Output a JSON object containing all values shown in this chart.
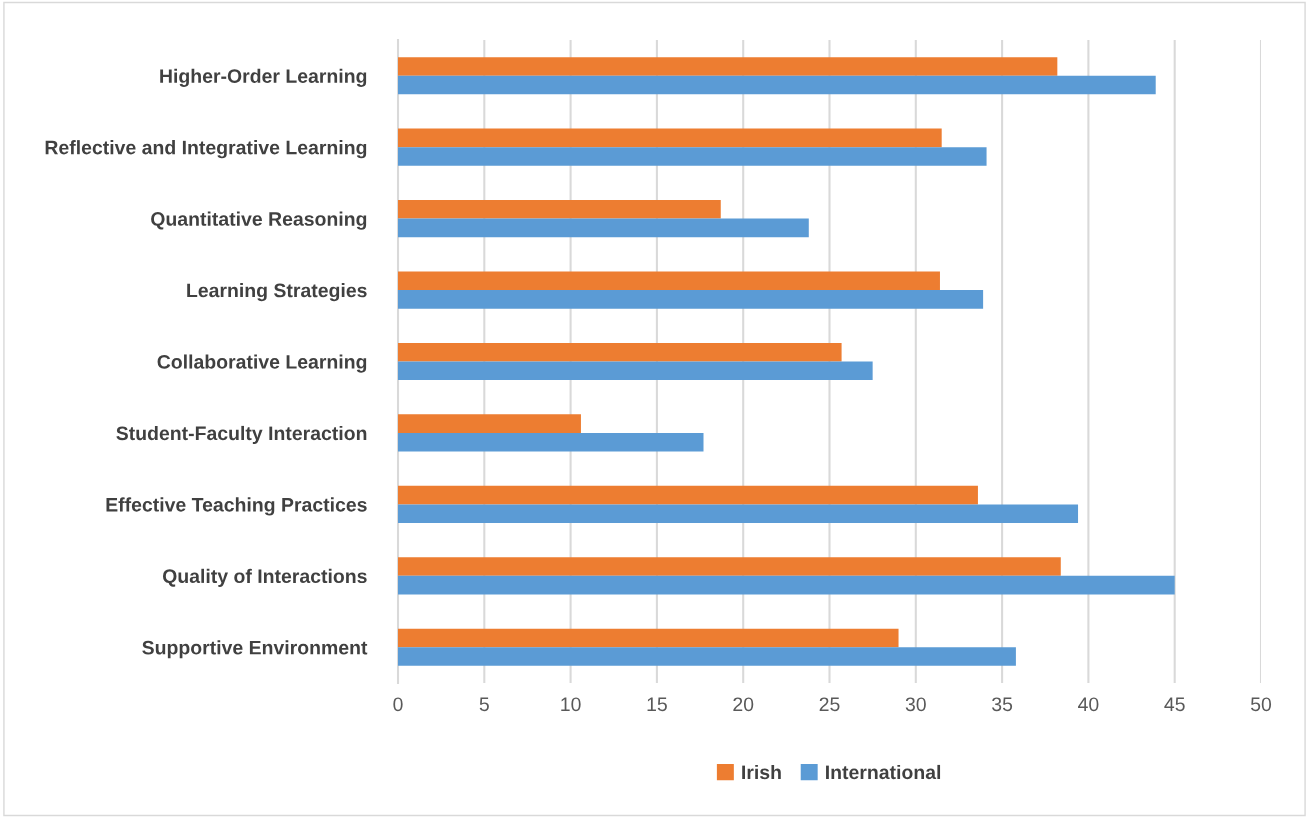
{
  "chart_data": {
    "type": "bar",
    "orientation": "horizontal",
    "categories": [
      "Higher-Order Learning",
      "Reflective and Integrative Learning",
      "Quantitative Reasoning",
      "Learning Strategies",
      "Collaborative Learning",
      "Student-Faculty Interaction",
      "Effective Teaching Practices",
      "Quality of Interactions",
      "Supportive Environment"
    ],
    "series": [
      {
        "name": "Irish",
        "color": "#ed7d31",
        "values": [
          38.2,
          31.5,
          18.7,
          31.4,
          25.7,
          10.6,
          33.6,
          38.4,
          29.0
        ]
      },
      {
        "name": "International",
        "color": "#5b9bd5",
        "values": [
          43.9,
          34.1,
          23.8,
          33.9,
          27.5,
          17.7,
          39.4,
          45.0,
          35.8
        ]
      }
    ],
    "xlim": [
      0,
      50
    ],
    "xticks": [
      0,
      5,
      10,
      15,
      20,
      25,
      30,
      35,
      40,
      45,
      50
    ],
    "grid": "x",
    "legend": "bottom"
  }
}
